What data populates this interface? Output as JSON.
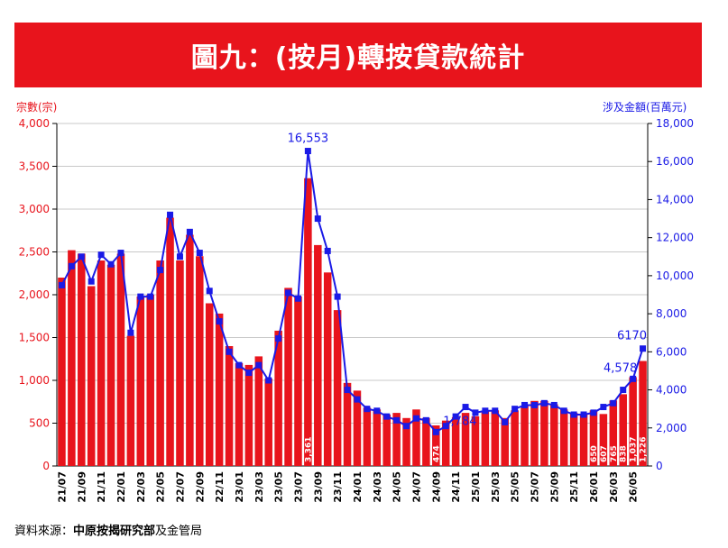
{
  "title": "圖九：(按月)轉按貸款統計",
  "left_axis_unit": "宗數(宗)",
  "right_axis_unit": "涉及金額(百萬元)",
  "source_prefix": "資料來源：",
  "source_bold": "中原按揭研究部",
  "source_suffix": "及金管局",
  "chart_data": {
    "type": "bar",
    "categories": [
      "21/07",
      "21/08",
      "21/09",
      "21/10",
      "21/11",
      "21/12",
      "22/01",
      "22/02",
      "22/03",
      "22/04",
      "22/05",
      "22/06",
      "22/07",
      "22/08",
      "22/09",
      "22/10",
      "22/11",
      "22/12",
      "23/01",
      "23/02",
      "23/03",
      "23/04",
      "23/05",
      "23/06",
      "23/07",
      "23/08",
      "23/09",
      "23/10",
      "23/11",
      "23/12",
      "24/01",
      "24/02",
      "24/03",
      "24/04",
      "24/05",
      "24/06",
      "24/07",
      "24/08",
      "24/09",
      "24/10",
      "24/11",
      "24/12",
      "25/01",
      "25/02",
      "25/03",
      "25/04",
      "25/05",
      "25/06",
      "25/07",
      "25/08",
      "25/09",
      "25/10",
      "25/11",
      "25/12",
      "26/01",
      "26/02",
      "26/03",
      "26/04",
      "26/05",
      "26/06"
    ],
    "x_tick_labels": [
      "21/07",
      "21/09",
      "21/11",
      "22/01",
      "22/03",
      "22/05",
      "22/07",
      "22/09",
      "22/11",
      "23/01",
      "23/03",
      "23/05",
      "23/07",
      "23/09",
      "23/11",
      "24/01",
      "24/03",
      "24/05",
      "24/07",
      "24/09",
      "24/11",
      "25/01",
      "25/03",
      "25/05",
      "25/07",
      "25/09",
      "25/11",
      "26/01",
      "26/03",
      "26/05"
    ],
    "series": [
      {
        "axis": "left",
        "type": "bar",
        "color": "#e8141c",
        "values": [
          2200,
          2520,
          2480,
          2100,
          2400,
          2350,
          2480,
          1520,
          1980,
          2000,
          2400,
          2900,
          2400,
          2700,
          2450,
          1900,
          1780,
          1400,
          1200,
          1180,
          1280,
          1020,
          1580,
          2080,
          1980,
          3361,
          2580,
          2260,
          1820,
          970,
          880,
          680,
          660,
          600,
          620,
          560,
          660,
          560,
          474,
          530,
          570,
          620,
          580,
          640,
          650,
          560,
          650,
          700,
          760,
          760,
          720,
          660,
          620,
          600,
          650,
          607,
          765,
          838,
          1037,
          1226
        ]
      },
      {
        "axis": "right",
        "type": "line",
        "color": "#1a1ae6",
        "values": [
          9500,
          10500,
          11000,
          9700,
          11100,
          10600,
          11200,
          7000,
          8900,
          8900,
          10300,
          13200,
          11000,
          12300,
          11200,
          9200,
          7600,
          6000,
          5300,
          4900,
          5300,
          4500,
          6700,
          9100,
          8800,
          16553,
          13000,
          11300,
          8900,
          4000,
          3500,
          3000,
          2900,
          2600,
          2400,
          2100,
          2500,
          2400,
          1784,
          2100,
          2600,
          3100,
          2800,
          2900,
          2900,
          2300,
          3000,
          3200,
          3200,
          3300,
          3200,
          2900,
          2700,
          2700,
          2800,
          3100,
          3300,
          4000,
          4578,
          6170
        ]
      }
    ],
    "left_axis": {
      "min": 0,
      "max": 4000,
      "step": 500,
      "ticks": [
        "0",
        "500",
        "1,000",
        "1,500",
        "2,000",
        "2,500",
        "3,000",
        "3,500",
        "4,000"
      ]
    },
    "right_axis": {
      "min": 0,
      "max": 18000,
      "step": 2000,
      "ticks": [
        "0",
        "2,000",
        "4,000",
        "6,000",
        "8,000",
        "10,000",
        "12,000",
        "14,000",
        "16,000",
        "18,000"
      ]
    },
    "line_annotations": [
      {
        "index": 25,
        "text": "16,553"
      },
      {
        "index": 38,
        "text": "1,784"
      },
      {
        "index": 58,
        "text": "4,578"
      },
      {
        "index": 59,
        "text": "6170"
      }
    ],
    "bar_labels": [
      {
        "index": 25,
        "text": "3,361"
      },
      {
        "index": 38,
        "text": "474"
      },
      {
        "index": 54,
        "text": "650"
      },
      {
        "index": 55,
        "text": "607"
      },
      {
        "index": 56,
        "text": "765"
      },
      {
        "index": 57,
        "text": "838"
      },
      {
        "index": 58,
        "text": "1,037"
      },
      {
        "index": 59,
        "text": "1,226"
      }
    ],
    "grid": true
  }
}
